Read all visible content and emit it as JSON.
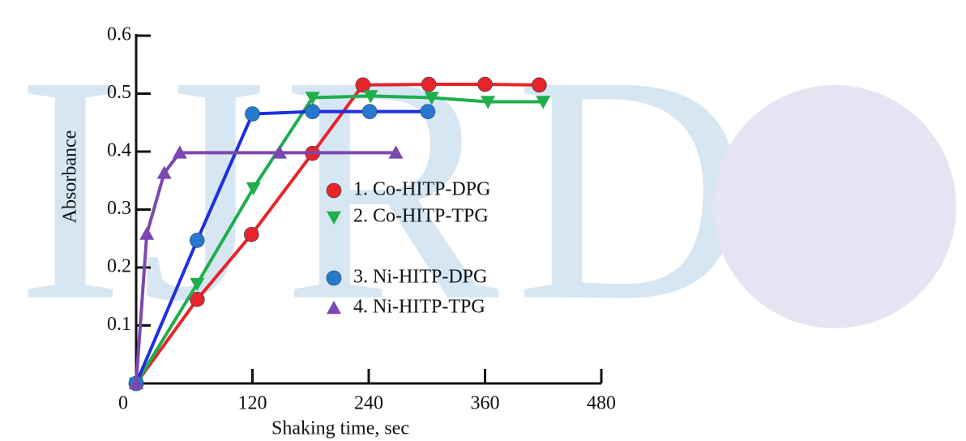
{
  "watermark": "IJRD",
  "chart_data": {
    "type": "line",
    "x_label": "Shaking time, sec",
    "y_label": "Absorbance",
    "xlim": [
      0,
      480
    ],
    "xticks": [
      0,
      120,
      240,
      360,
      480
    ],
    "ylim": [
      0,
      0.6
    ],
    "yticks": [
      0.1,
      0.2,
      0.3,
      0.4,
      0.5,
      0.6
    ],
    "series": [
      {
        "name": "1. Co-HITP-DPG",
        "color": "#e8242b",
        "marker": "circle",
        "x": [
          0,
          63,
          119,
          182,
          234,
          302,
          360,
          416
        ],
        "values": [
          0,
          0.145,
          0.257,
          0.397,
          0.515,
          0.516,
          0.516,
          0.515
        ]
      },
      {
        "name": "2. Co-HITP-TPG",
        "color": "#1fae4c",
        "marker": "triangle-down",
        "x": [
          0,
          63,
          121,
          182,
          242,
          305,
          363,
          420
        ],
        "values": [
          0,
          0.172,
          0.337,
          0.493,
          0.496,
          0.493,
          0.486,
          0.486
        ]
      },
      {
        "name": "3. Ni-HITP-DPG",
        "color": "#2878d0",
        "marker": "circle",
        "x": [
          0,
          63,
          120,
          182,
          241,
          301
        ],
        "values": [
          0,
          0.247,
          0.465,
          0.469,
          0.469,
          0.469
        ]
      },
      {
        "name": "4. Ni-HITP-TPG",
        "color": "#7c47b0",
        "marker": "triangle-up",
        "x": [
          0,
          11,
          29,
          45,
          148,
          268
        ],
        "values": [
          0,
          0.258,
          0.363,
          0.398,
          0.398,
          0.398
        ]
      }
    ]
  }
}
